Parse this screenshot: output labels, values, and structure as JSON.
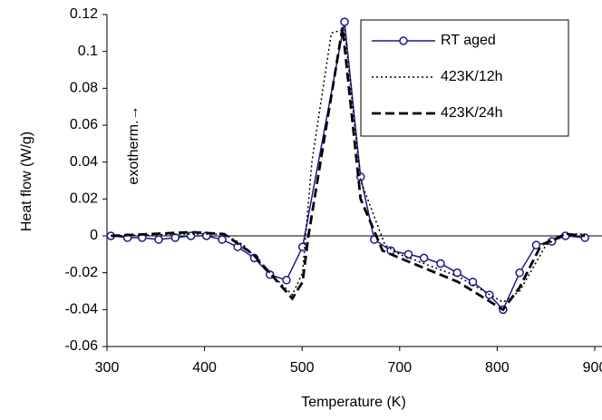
{
  "chart_data": {
    "type": "line",
    "x_label": "Temperature (K)",
    "y_label": "Heat flow (W/g)",
    "annotation": "exotherm.→",
    "xlim": [
      300,
      900
    ],
    "xticks": [
      300,
      400,
      500,
      700,
      800,
      900
    ],
    "ylim": [
      -0.06,
      0.12
    ],
    "yticks": [
      -0.06,
      -0.04,
      -0.02,
      0,
      0.02,
      0.04,
      0.06,
      0.08,
      0.1,
      0.12
    ],
    "series": [
      {
        "name": "RT aged",
        "color": "#1a1a8c",
        "style": "solid-markers",
        "x": [
          304,
          321,
          336,
          353,
          370,
          386,
          402,
          418,
          434,
          451,
          467,
          484,
          501,
          587,
          620,
          648,
          682,
          709,
          725,
          742,
          759,
          775,
          792,
          806,
          823,
          840,
          856,
          870,
          890
        ],
        "values": [
          0,
          -0.001,
          -0.001,
          -0.002,
          -0.001,
          0,
          0,
          -0.002,
          -0.006,
          -0.012,
          -0.021,
          -0.024,
          -0.006,
          0.116,
          0.032,
          -0.002,
          -0.008,
          -0.01,
          -0.012,
          -0.015,
          -0.02,
          -0.025,
          -0.032,
          -0.04,
          -0.02,
          -0.005,
          -0.003,
          0,
          -0.001
        ]
      },
      {
        "name": "423K/12h",
        "color": "#000000",
        "style": "dotted",
        "x": [
          304,
          386,
          420,
          440,
          467,
          490,
          501,
          520,
          560,
          587,
          620,
          670,
          700,
          760,
          806,
          823,
          850,
          870,
          890
        ],
        "values": [
          0,
          0.001,
          0.001,
          -0.005,
          -0.02,
          -0.032,
          -0.02,
          0.04,
          0.11,
          0.112,
          0.03,
          -0.005,
          -0.01,
          -0.022,
          -0.036,
          -0.03,
          -0.005,
          0.001,
          0.001
        ]
      },
      {
        "name": "423K/24h",
        "color": "#000000",
        "style": "dashed",
        "x": [
          304,
          386,
          420,
          450,
          475,
          490,
          501,
          513,
          550,
          583,
          620,
          665,
          700,
          760,
          806,
          823,
          845,
          870,
          890
        ],
        "values": [
          0,
          0.002,
          0.001,
          -0.01,
          -0.025,
          -0.034,
          -0.025,
          0,
          0.06,
          0.113,
          0.02,
          -0.008,
          -0.012,
          -0.025,
          -0.04,
          -0.028,
          -0.005,
          0.001,
          0
        ]
      }
    ]
  }
}
